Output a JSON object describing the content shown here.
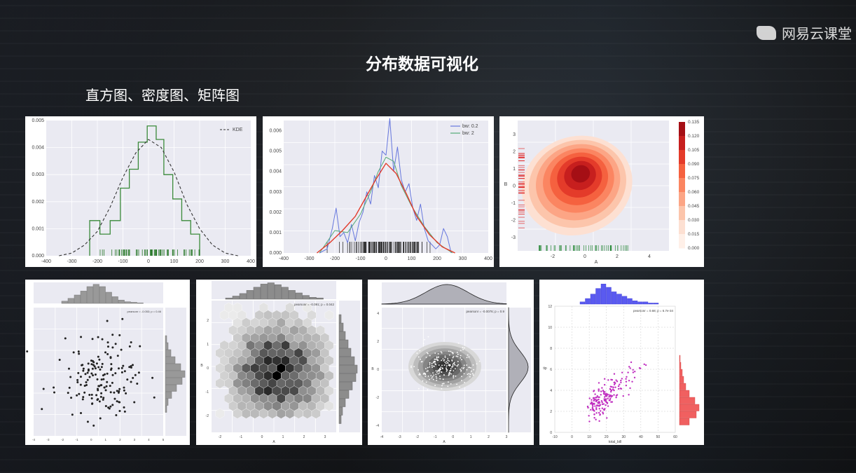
{
  "brand": {
    "name": "网易云课堂",
    "icon": "netease-cloud-icon"
  },
  "slide": {
    "title": "分布数据可视化",
    "subtitle": "直方图、密度图、矩阵图"
  },
  "chart_data": [
    {
      "type": "line",
      "description_legend": [
        "KDE"
      ],
      "x_ticks": [
        "-400",
        "-300",
        "-200",
        "-100",
        "0",
        "100",
        "200",
        "300",
        "400"
      ],
      "y_ticks": [
        "0.000",
        "0.001",
        "0.002",
        "0.003",
        "0.004",
        "0.005"
      ],
      "xlim": [
        -400,
        400
      ],
      "ylim": [
        0,
        0.005
      ],
      "kde": {
        "x": [
          -350,
          -300,
          -250,
          -200,
          -150,
          -100,
          -50,
          0,
          50,
          100,
          150,
          200,
          250,
          300,
          350
        ],
        "y": [
          0.0,
          0.0001,
          0.0004,
          0.0009,
          0.0018,
          0.0029,
          0.0038,
          0.0043,
          0.004,
          0.0031,
          0.0019,
          0.001,
          0.0004,
          0.0001,
          0.0
        ]
      },
      "hist": {
        "edges": [
          -230,
          -190,
          -150,
          -110,
          -75,
          -40,
          -5,
          30,
          60,
          95,
          130,
          165,
          200
        ],
        "values": [
          0.0013,
          0.0008,
          0.0013,
          0.0025,
          0.0032,
          0.0042,
          0.0048,
          0.0043,
          0.003,
          0.0021,
          0.0013,
          0.0008
        ]
      }
    },
    {
      "type": "line",
      "legend": [
        "bw: 0.2",
        "bw: 2"
      ],
      "x_ticks": [
        "-400",
        "-300",
        "-200",
        "-100",
        "0",
        "100",
        "200",
        "300",
        "400"
      ],
      "y_ticks": [
        "0.000",
        "0.001",
        "0.002",
        "0.003",
        "0.004",
        "0.005",
        "0.006"
      ],
      "xlim": [
        -400,
        400
      ],
      "ylim": [
        0,
        0.0065
      ],
      "series": [
        {
          "name": "bw: 0.2",
          "x": [
            -260,
            -230,
            -210,
            -195,
            -180,
            -165,
            -150,
            -135,
            -120,
            -105,
            -90,
            -75,
            -60,
            -45,
            -30,
            -15,
            0,
            15,
            30,
            45,
            60,
            75,
            90,
            105,
            120,
            135,
            150,
            165,
            180,
            195,
            210,
            225,
            240,
            255
          ],
          "y": [
            0.0,
            0.0002,
            0.0012,
            0.0022,
            0.0008,
            0.001,
            0.0005,
            0.0014,
            0.0006,
            0.0015,
            0.002,
            0.003,
            0.0024,
            0.0038,
            0.0032,
            0.005,
            0.0048,
            0.0066,
            0.004,
            0.0052,
            0.0036,
            0.003,
            0.0034,
            0.0022,
            0.0016,
            0.0024,
            0.0012,
            0.0006,
            0.0004,
            0.0002,
            0.0004,
            0.0012,
            0.0008,
            0.0
          ]
        },
        {
          "name": "bw: 2",
          "x": [
            -260,
            -200,
            -150,
            -100,
            -60,
            -30,
            0,
            30,
            60,
            100,
            150,
            200,
            260
          ],
          "y": [
            0.0,
            0.0011,
            0.001,
            0.0019,
            0.003,
            0.004,
            0.0047,
            0.0045,
            0.0033,
            0.0023,
            0.0013,
            0.0005,
            0.0
          ]
        },
        {
          "name": "",
          "x": [
            -270,
            -220,
            -170,
            -120,
            -80,
            -40,
            0,
            40,
            80,
            120,
            170,
            220,
            270
          ],
          "y": [
            0.0,
            0.0005,
            0.0011,
            0.0018,
            0.0027,
            0.0036,
            0.0044,
            0.0039,
            0.0029,
            0.0018,
            0.0009,
            0.0003,
            0.0
          ]
        }
      ]
    },
    {
      "type": "heatmap",
      "xlabel": "A",
      "ylabel": "B",
      "x_ticks": [
        "-2",
        "0",
        "2",
        "4"
      ],
      "y_ticks": [
        "3",
        "2",
        "1",
        "0",
        "-1",
        "-2",
        "-3"
      ],
      "colorbar_ticks": [
        "0.135",
        "0.120",
        "0.105",
        "0.090",
        "0.075",
        "0.060",
        "0.045",
        "0.030",
        "0.015",
        "0.000"
      ]
    },
    {
      "type": "scatter",
      "annotation": "pearsonr = -0.053; p = 0.46",
      "x_ticks": [
        "-4",
        "-3",
        "-2",
        "-1",
        "0",
        "1",
        "2",
        "3",
        "4",
        "5"
      ]
    },
    {
      "type": "heatmap",
      "annotation": "pearsonr = -0.091; p = 0.042",
      "xlabel": "A",
      "ylabel": "B",
      "x_ticks": [
        "-2",
        "-1",
        "0",
        "1",
        "2",
        "3"
      ],
      "y_ticks": [
        "2",
        "1",
        "0",
        "-1",
        "-2"
      ]
    },
    {
      "type": "scatter",
      "annotation": "pearsonr = -0.0076; p = 0.9",
      "xlabel": "A",
      "ylabel": "B",
      "x_ticks": [
        "-4",
        "-3",
        "-2",
        "-1",
        "0",
        "1",
        "2",
        "3"
      ],
      "y_ticks": [
        "4",
        "2",
        "0",
        "-2",
        "-4"
      ]
    },
    {
      "type": "scatter",
      "annotation": "pearsonr = 0.68; p = 6.7e-34",
      "xlabel": "total_bill",
      "ylabel": "tip",
      "x_ticks": [
        "-10",
        "0",
        "10",
        "20",
        "30",
        "40",
        "50",
        "60"
      ],
      "y_ticks": [
        "12",
        "10",
        "8",
        "6",
        "4",
        "2",
        "0"
      ]
    }
  ]
}
